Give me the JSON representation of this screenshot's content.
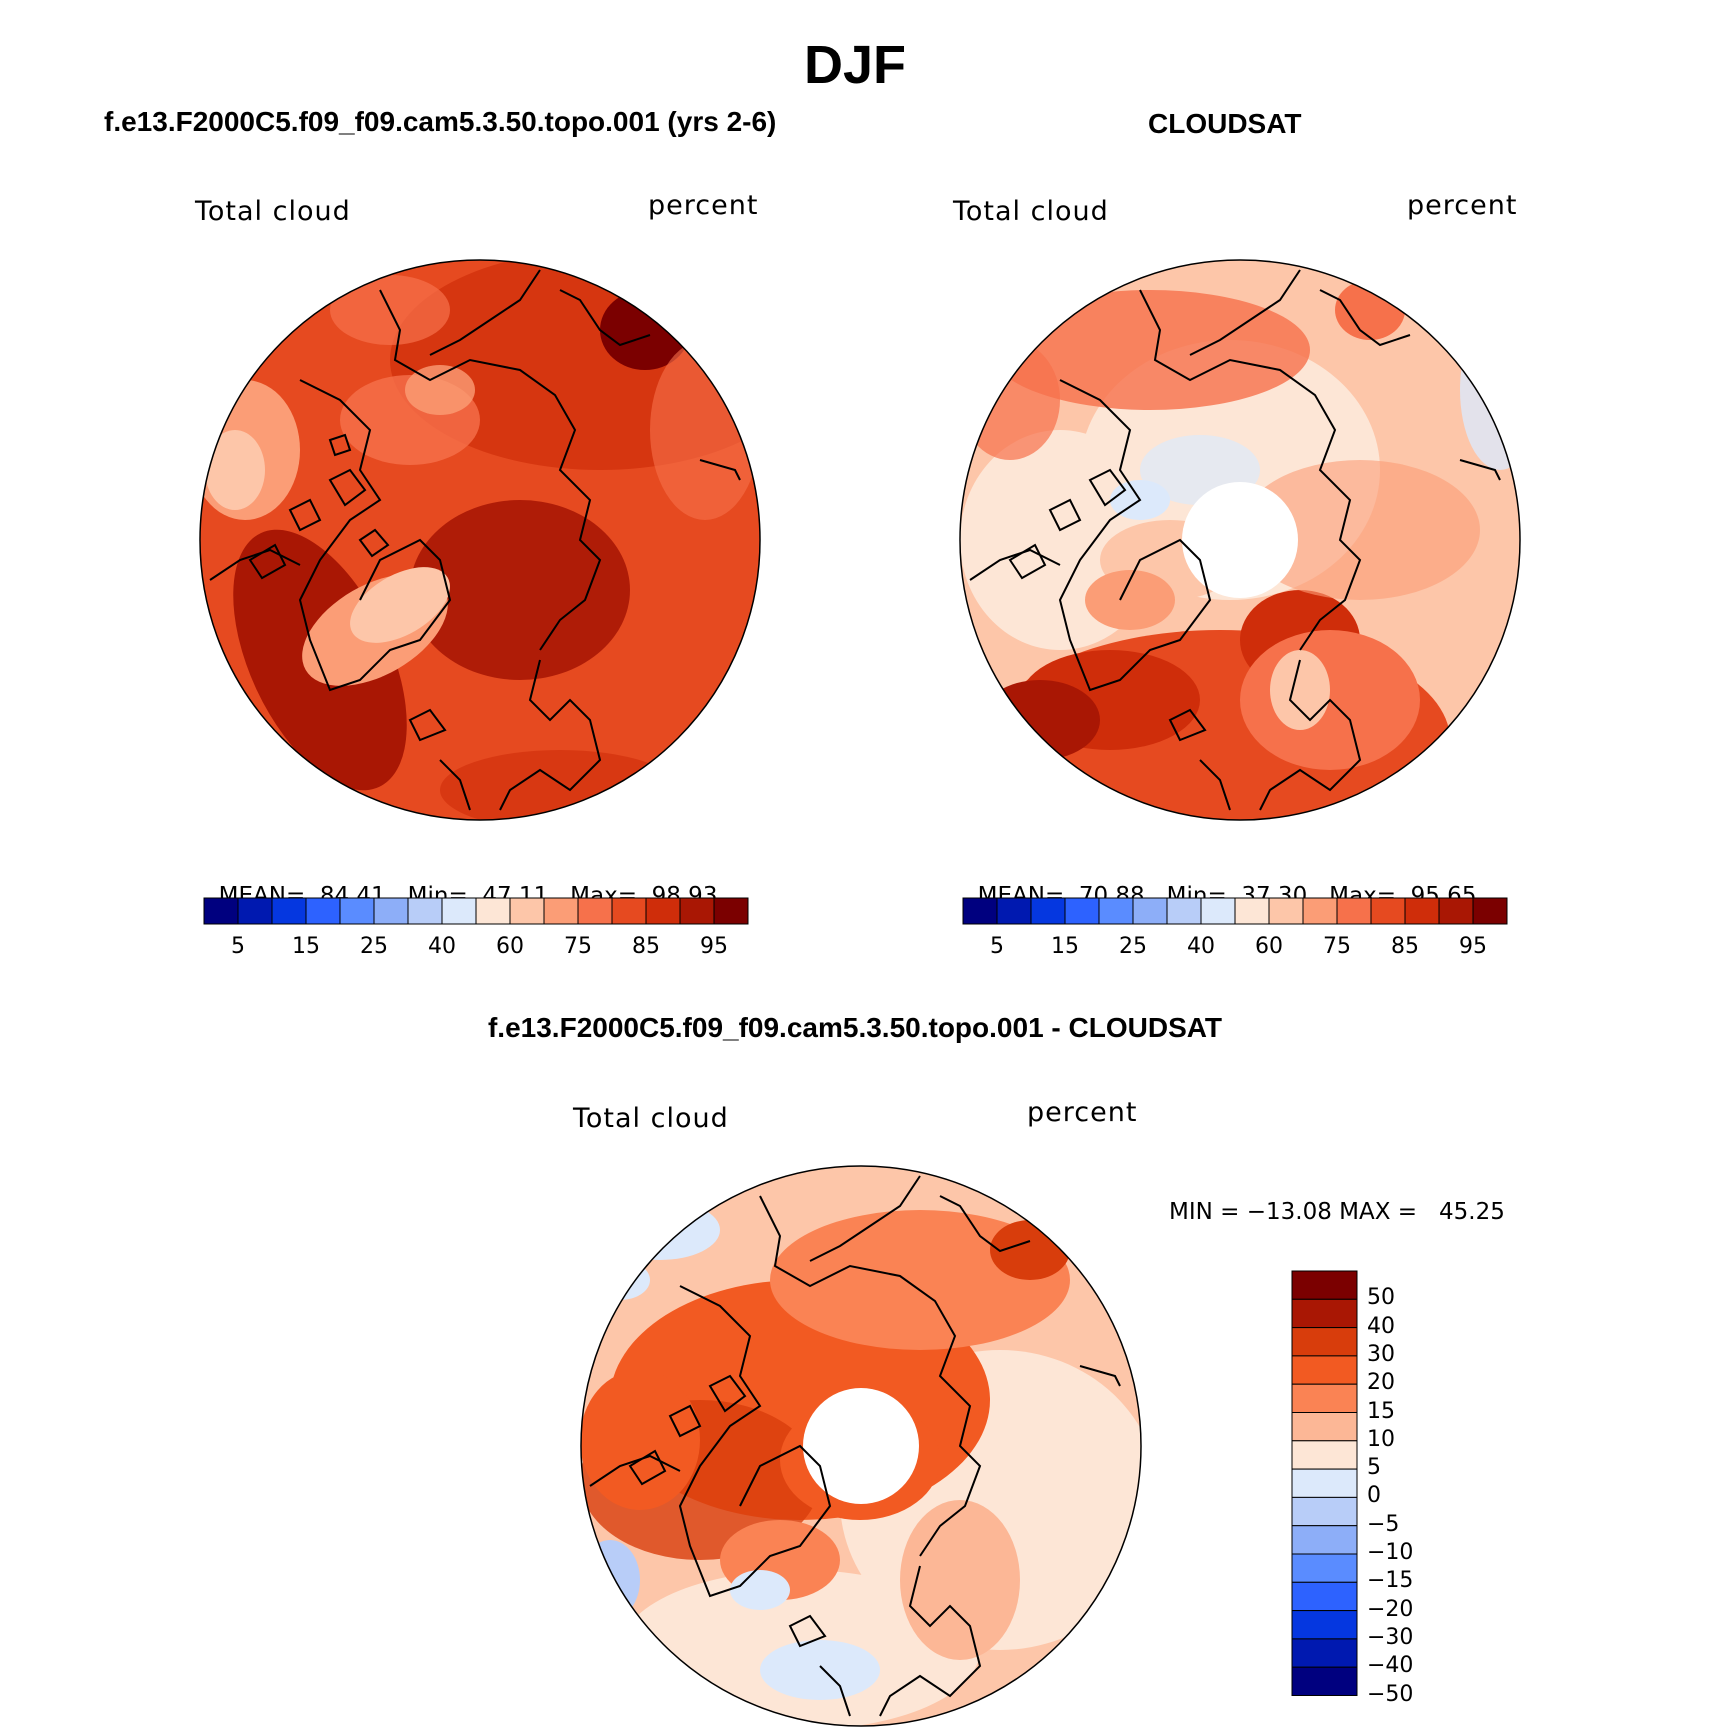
{
  "figure": {
    "title": "DJF",
    "panels": [
      {
        "id": "model",
        "heading": "f.e13.F2000C5.f09_f09.cam5.3.50.topo.001 (yrs 2-6)",
        "variable": "Total cloud",
        "units": "percent",
        "stats": {
          "mean_label": "MEAN=",
          "mean": "84.41",
          "min_label": "Min=",
          "min": "47.11",
          "max_label": "Max=",
          "max": "98.93"
        },
        "colorbar_ticks": [
          "5",
          "15",
          "25",
          "40",
          "60",
          "75",
          "85",
          "95"
        ]
      },
      {
        "id": "obs",
        "heading": "CLOUDSAT",
        "variable": "Total cloud",
        "units": "percent",
        "stats": {
          "mean_label": "MEAN=",
          "mean": "70.88",
          "min_label": "Min=",
          "min": "37.30",
          "max_label": "Max=",
          "max": "95.65"
        },
        "colorbar_ticks": [
          "5",
          "15",
          "25",
          "40",
          "60",
          "75",
          "85",
          "95"
        ]
      },
      {
        "id": "diff",
        "heading": "f.e13.F2000C5.f09_f09.cam5.3.50.topo.001 - CLOUDSAT",
        "variable": "Total cloud",
        "units": "percent",
        "stats": {
          "text": "MIN = −13.08 MAX =   45.25"
        },
        "colorbar_ticks": [
          "50",
          "40",
          "30",
          "20",
          "15",
          "10",
          "5",
          "0",
          "−5",
          "−10",
          "−15",
          "−20",
          "−30",
          "−40",
          "−50"
        ]
      }
    ]
  },
  "colors": {
    "abs_scale": [
      "#00007f",
      "#0019b0",
      "#0537e0",
      "#2d62ff",
      "#5a8cff",
      "#8daef8",
      "#b8cdf8",
      "#dce9fb",
      "#fde6d6",
      "#fdc6a9",
      "#fb9d76",
      "#f6714b",
      "#e64a20",
      "#cf2d0a",
      "#a91704",
      "#7b0000"
    ],
    "diff_scale": [
      "#7b0000",
      "#a91704",
      "#d83d0c",
      "#f25a22",
      "#fa8354",
      "#fcb796",
      "#fde6d6",
      "#dce9fb",
      "#b8cdf8",
      "#8daef8",
      "#5a8cff",
      "#2d62ff",
      "#0537e0",
      "#0019b0",
      "#00007f"
    ]
  }
}
